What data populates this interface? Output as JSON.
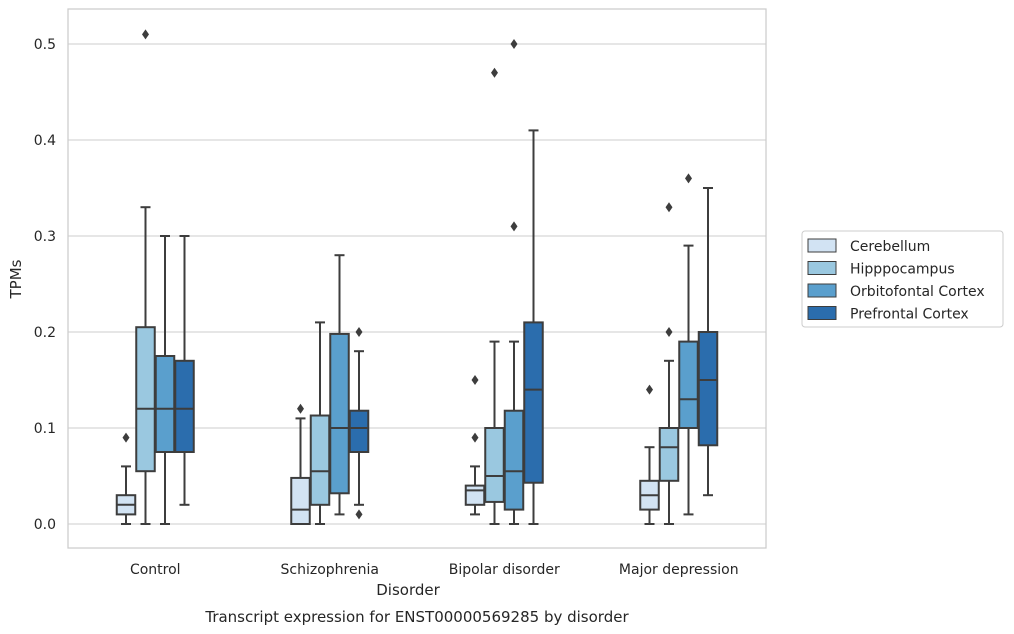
{
  "caption": "Transcript expression for ENST00000569285 by disorder",
  "chart_data": {
    "type": "box",
    "xlabel": "Disorder",
    "ylabel": "TPMs",
    "categories": [
      "Control",
      "Schizophrenia",
      "Bipolar disorder",
      "Major depression"
    ],
    "ylim": [
      -0.025,
      0.537
    ],
    "yticks": [
      0.0,
      0.1,
      0.2,
      0.3,
      0.4,
      0.5
    ],
    "ytick_labels": [
      "0.0",
      "0.1",
      "0.2",
      "0.3",
      "0.4",
      "0.5"
    ],
    "grid": "horizontal",
    "legend_position": "right",
    "series": [
      {
        "name": "Cerebellum",
        "color": "#d2e3f3",
        "boxes": [
          {
            "whislo": 0.0,
            "q1": 0.01,
            "med": 0.02,
            "q3": 0.03,
            "whishi": 0.06,
            "fliers": [
              0.09
            ]
          },
          {
            "whislo": 0.0,
            "q1": 0.0,
            "med": 0.015,
            "q3": 0.048,
            "whishi": 0.11,
            "fliers": [
              0.12
            ]
          },
          {
            "whislo": 0.01,
            "q1": 0.02,
            "med": 0.035,
            "q3": 0.04,
            "whishi": 0.06,
            "fliers": [
              0.09,
              0.15
            ]
          },
          {
            "whislo": 0.0,
            "q1": 0.015,
            "med": 0.03,
            "q3": 0.045,
            "whishi": 0.08,
            "fliers": [
              0.14
            ]
          }
        ]
      },
      {
        "name": "Hipppocampus",
        "color": "#9ac8e0",
        "boxes": [
          {
            "whislo": 0.0,
            "q1": 0.055,
            "med": 0.12,
            "q3": 0.205,
            "whishi": 0.33,
            "fliers": [
              0.51
            ]
          },
          {
            "whislo": 0.0,
            "q1": 0.02,
            "med": 0.055,
            "q3": 0.113,
            "whishi": 0.21,
            "fliers": []
          },
          {
            "whislo": 0.0,
            "q1": 0.023,
            "med": 0.05,
            "q3": 0.1,
            "whishi": 0.19,
            "fliers": [
              0.47
            ]
          },
          {
            "whislo": 0.0,
            "q1": 0.045,
            "med": 0.08,
            "q3": 0.1,
            "whishi": 0.17,
            "fliers": [
              0.2,
              0.33
            ]
          }
        ]
      },
      {
        "name": "Orbitofontal Cortex",
        "color": "#5a9fcd",
        "boxes": [
          {
            "whislo": 0.0,
            "q1": 0.075,
            "med": 0.12,
            "q3": 0.175,
            "whishi": 0.3,
            "fliers": []
          },
          {
            "whislo": 0.01,
            "q1": 0.032,
            "med": 0.1,
            "q3": 0.198,
            "whishi": 0.28,
            "fliers": []
          },
          {
            "whislo": 0.0,
            "q1": 0.015,
            "med": 0.055,
            "q3": 0.118,
            "whishi": 0.19,
            "fliers": [
              0.31,
              0.5
            ]
          },
          {
            "whislo": 0.01,
            "q1": 0.1,
            "med": 0.13,
            "q3": 0.19,
            "whishi": 0.29,
            "fliers": [
              0.36
            ]
          }
        ]
      },
      {
        "name": "Prefrontal Cortex",
        "color": "#2b6dad",
        "boxes": [
          {
            "whislo": 0.02,
            "q1": 0.075,
            "med": 0.12,
            "q3": 0.17,
            "whishi": 0.3,
            "fliers": []
          },
          {
            "whislo": 0.02,
            "q1": 0.075,
            "med": 0.1,
            "q3": 0.118,
            "whishi": 0.18,
            "fliers": [
              0.01,
              0.2
            ]
          },
          {
            "whislo": 0.0,
            "q1": 0.043,
            "med": 0.14,
            "q3": 0.21,
            "whishi": 0.41,
            "fliers": []
          },
          {
            "whislo": 0.03,
            "q1": 0.082,
            "med": 0.15,
            "q3": 0.2,
            "whishi": 0.35,
            "fliers": []
          }
        ]
      }
    ]
  }
}
